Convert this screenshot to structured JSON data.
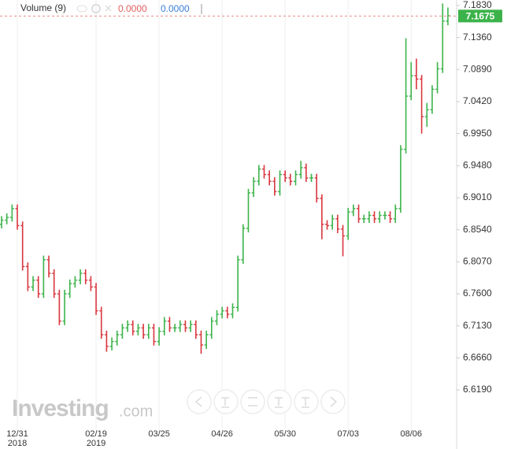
{
  "chart_data": {
    "type": "ohlc",
    "indicator": {
      "name": "Volume (9)",
      "value_a": "0.0000",
      "value_b": "0.0000"
    },
    "watermark_main": "Investing",
    "watermark_suffix": ".com",
    "up_color": "#3cb34a",
    "down_color": "#d9363e",
    "grid": "vertical",
    "last_price": {
      "value": 7.1675,
      "label": "7.1675"
    },
    "ylim": [
      6.567,
      7.191
    ],
    "yticks": [
      {
        "value": 7.183,
        "label": "7.1830"
      },
      {
        "value": 7.136,
        "label": "7.1360"
      },
      {
        "value": 7.089,
        "label": "7.0890"
      },
      {
        "value": 7.042,
        "label": "7.0420"
      },
      {
        "value": 6.995,
        "label": "6.9950"
      },
      {
        "value": 6.948,
        "label": "6.9480"
      },
      {
        "value": 6.901,
        "label": "6.9010"
      },
      {
        "value": 6.854,
        "label": "6.8540"
      },
      {
        "value": 6.807,
        "label": "6.8070"
      },
      {
        "value": 6.76,
        "label": "6.7600"
      },
      {
        "value": 6.713,
        "label": "6.7130"
      },
      {
        "value": 6.666,
        "label": "6.6660"
      },
      {
        "value": 6.619,
        "label": "6.6190"
      }
    ],
    "categories": [
      null,
      null,
      null,
      "12/31",
      null,
      null,
      null,
      null,
      null,
      null,
      null,
      null,
      null,
      null,
      null,
      null,
      null,
      null,
      "02/19",
      null,
      null,
      null,
      null,
      null,
      null,
      null,
      null,
      null,
      null,
      null,
      "03/25",
      null,
      null,
      null,
      null,
      null,
      null,
      null,
      null,
      null,
      null,
      null,
      "04/26",
      null,
      null,
      null,
      null,
      null,
      null,
      null,
      null,
      null,
      null,
      null,
      "05/30",
      null,
      null,
      null,
      null,
      null,
      null,
      null,
      null,
      null,
      null,
      null,
      "07/03",
      null,
      null,
      null,
      null,
      null,
      null,
      null,
      null,
      null,
      null,
      null,
      "08/06",
      null,
      null,
      null,
      null,
      null,
      null,
      null
    ],
    "category_years": [
      null,
      null,
      null,
      "2018",
      null,
      null,
      null,
      null,
      null,
      null,
      null,
      null,
      null,
      null,
      null,
      null,
      null,
      null,
      "2019",
      null,
      null,
      null,
      null,
      null,
      null,
      null,
      null,
      null,
      null,
      null,
      null,
      null,
      null,
      null,
      null,
      null,
      null,
      null,
      null,
      null,
      null,
      null,
      null,
      null,
      null,
      null,
      null,
      null,
      null,
      null,
      null,
      null,
      null,
      null,
      null,
      null,
      null,
      null,
      null,
      null,
      null,
      null,
      null,
      null,
      null,
      null,
      null,
      null,
      null,
      null,
      null,
      null,
      null,
      null,
      null,
      null,
      null,
      null,
      null,
      null,
      null,
      null,
      null,
      null,
      null,
      null
    ],
    "open": [
      6.862,
      6.868,
      6.872,
      6.885,
      6.86,
      6.8,
      6.77,
      6.78,
      6.76,
      6.81,
      6.79,
      6.76,
      6.72,
      6.76,
      6.775,
      6.78,
      6.79,
      6.78,
      6.77,
      6.735,
      6.7,
      6.683,
      6.69,
      6.7,
      6.71,
      6.715,
      6.705,
      6.71,
      6.7,
      6.71,
      6.69,
      6.705,
      6.72,
      6.71,
      6.71,
      6.715,
      6.71,
      6.715,
      6.7,
      6.685,
      6.7,
      6.72,
      6.73,
      6.735,
      6.73,
      6.74,
      6.81,
      6.856,
      6.908,
      6.925,
      6.943,
      6.935,
      6.925,
      6.91,
      6.935,
      6.93,
      6.925,
      6.935,
      6.945,
      6.93,
      6.93,
      6.9,
      6.862,
      6.86,
      6.87,
      6.855,
      6.845,
      6.88,
      6.885,
      6.87,
      6.87,
      6.875,
      6.87,
      6.875,
      6.875,
      6.87,
      6.885,
      6.972,
      7.05,
      7.08,
      7.075,
      7.02,
      7.03,
      7.06,
      7.09,
      7.16
    ],
    "high": [
      6.874,
      6.878,
      6.891,
      6.891,
      6.866,
      6.806,
      6.786,
      6.786,
      6.816,
      6.816,
      6.796,
      6.766,
      6.766,
      6.781,
      6.786,
      6.796,
      6.796,
      6.786,
      6.776,
      6.741,
      6.706,
      6.696,
      6.706,
      6.716,
      6.721,
      6.721,
      6.716,
      6.716,
      6.716,
      6.716,
      6.711,
      6.726,
      6.726,
      6.716,
      6.721,
      6.721,
      6.721,
      6.721,
      6.706,
      6.706,
      6.726,
      6.736,
      6.741,
      6.741,
      6.746,
      6.816,
      6.862,
      6.914,
      6.931,
      6.949,
      6.949,
      6.941,
      6.931,
      6.941,
      6.941,
      6.936,
      6.941,
      6.955,
      6.951,
      6.936,
      6.936,
      6.906,
      6.868,
      6.876,
      6.876,
      6.861,
      6.886,
      6.891,
      6.891,
      6.876,
      6.881,
      6.881,
      6.881,
      6.881,
      6.881,
      6.891,
      6.978,
      7.135,
      7.1,
      7.105,
      7.081,
      7.04,
      7.066,
      7.1,
      7.186,
      7.18
    ],
    "low": [
      6.856,
      6.862,
      6.866,
      6.854,
      6.794,
      6.764,
      6.764,
      6.754,
      6.754,
      6.784,
      6.754,
      6.714,
      6.714,
      6.754,
      6.769,
      6.774,
      6.774,
      6.764,
      6.729,
      6.694,
      6.675,
      6.677,
      6.684,
      6.694,
      6.704,
      6.699,
      6.699,
      6.694,
      6.694,
      6.684,
      6.684,
      6.699,
      6.704,
      6.704,
      6.704,
      6.704,
      6.704,
      6.694,
      6.672,
      6.679,
      6.694,
      6.714,
      6.724,
      6.724,
      6.724,
      6.734,
      6.804,
      6.85,
      6.902,
      6.919,
      6.929,
      6.919,
      6.904,
      6.904,
      6.924,
      6.919,
      6.919,
      6.929,
      6.924,
      6.924,
      6.894,
      6.84,
      6.854,
      6.854,
      6.849,
      6.815,
      6.839,
      6.874,
      6.864,
      6.864,
      6.864,
      6.864,
      6.864,
      6.869,
      6.864,
      6.864,
      6.879,
      6.966,
      7.044,
      7.06,
      6.995,
      7.005,
      7.024,
      7.054,
      7.084,
      7.154
    ],
    "close": [
      6.868,
      6.872,
      6.885,
      6.86,
      6.8,
      6.77,
      6.78,
      6.76,
      6.81,
      6.79,
      6.76,
      6.72,
      6.76,
      6.775,
      6.78,
      6.79,
      6.78,
      6.77,
      6.735,
      6.7,
      6.683,
      6.69,
      6.7,
      6.71,
      6.715,
      6.705,
      6.71,
      6.7,
      6.71,
      6.69,
      6.705,
      6.72,
      6.71,
      6.71,
      6.715,
      6.71,
      6.715,
      6.7,
      6.685,
      6.7,
      6.72,
      6.73,
      6.735,
      6.73,
      6.74,
      6.81,
      6.856,
      6.908,
      6.925,
      6.943,
      6.935,
      6.925,
      6.91,
      6.935,
      6.93,
      6.925,
      6.935,
      6.945,
      6.93,
      6.93,
      6.9,
      6.862,
      6.86,
      6.87,
      6.855,
      6.845,
      6.88,
      6.885,
      6.87,
      6.87,
      6.875,
      6.87,
      6.875,
      6.875,
      6.87,
      6.885,
      6.972,
      7.05,
      7.08,
      7.075,
      7.02,
      7.03,
      7.06,
      7.09,
      7.16,
      7.168
    ]
  }
}
